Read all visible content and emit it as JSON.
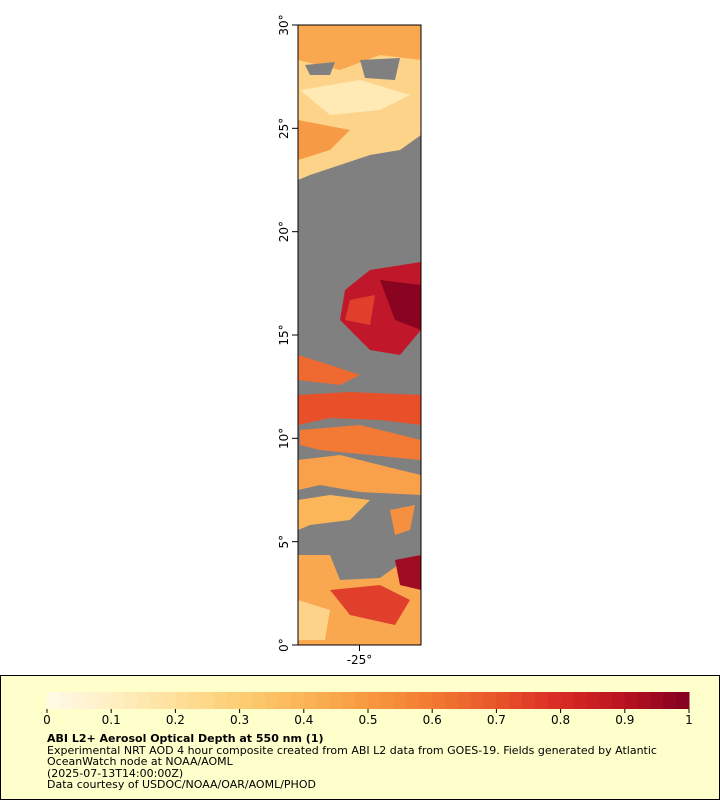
{
  "chart_data": {
    "type": "map",
    "xlim": [
      -28,
      -22
    ],
    "ylim": [
      0,
      30
    ],
    "xticks": [
      {
        "value": -25,
        "label": "-25°"
      }
    ],
    "yticks": [
      {
        "value": 0,
        "label": "0°"
      },
      {
        "value": 5,
        "label": "5°"
      },
      {
        "value": 10,
        "label": "10°"
      },
      {
        "value": 15,
        "label": "15°"
      },
      {
        "value": 20,
        "label": "20°"
      },
      {
        "value": 25,
        "label": "25°"
      },
      {
        "value": 30,
        "label": "30°"
      }
    ],
    "colorbar": {
      "range": [
        0,
        1
      ],
      "ticks": [
        0,
        0.1,
        0.2,
        0.3,
        0.4,
        0.5,
        0.6,
        0.7,
        0.8,
        0.9,
        1
      ],
      "colors": [
        "#fffbe8",
        "#ffefc4",
        "#fee09b",
        "#fdcd74",
        "#fbb556",
        "#f8993f",
        "#f27a30",
        "#e8552a",
        "#d92a25",
        "#b9121f",
        "#800020"
      ]
    },
    "title": "ABI L2+ Aerosol Optical Depth at 550 nm (1)",
    "caption": [
      "Experimental NRT AOD 4 hour composite created from ABI L2 data from GOES-19. Fields generated by Atlantic",
      "OceanWatch node at NOAA/AOML",
      "(2025-07-13T14:00:00Z)",
      "Data courtesy of USDOC/NOAA/OAR/AOML/PHOD"
    ]
  }
}
